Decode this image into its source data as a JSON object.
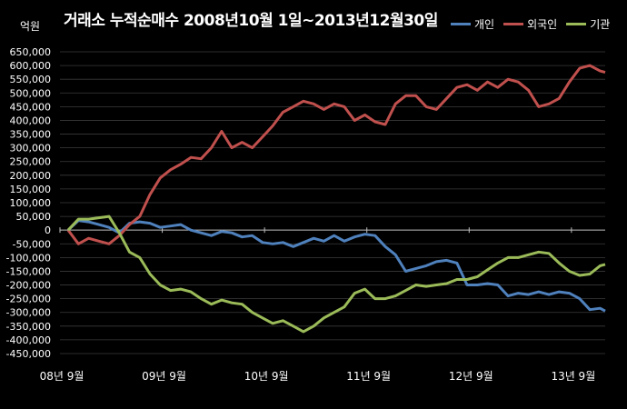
{
  "chart_data": {
    "type": "line",
    "title": "거래소 누적순매수 2008년10월 1일~2013년12월30일",
    "unit_label": "억원",
    "ylim": [
      -450000,
      650000
    ],
    "yticks": [
      650000,
      600000,
      550000,
      500000,
      450000,
      400000,
      350000,
      300000,
      250000,
      200000,
      150000,
      100000,
      50000,
      0,
      -50000,
      -100000,
      -150000,
      -200000,
      -250000,
      -300000,
      -350000,
      -400000,
      -450000
    ],
    "ytick_labels": [
      "650,000",
      "600,000",
      "550,000",
      "500,000",
      "450,000",
      "400,000",
      "350,000",
      "300,000",
      "250,000",
      "200,000",
      "150,000",
      "100,000",
      "50,000",
      "0",
      "-50,000",
      "-100,000",
      "-150,000",
      "-200,000",
      "-250,000",
      "-300,000",
      "-350,000",
      "-400,000",
      "-450,000"
    ],
    "xtick_labels": [
      "08년 9월",
      "09년 9월",
      "10년 9월",
      "11년 9월",
      "12년 9월",
      "13년 9월"
    ],
    "xlim": [
      2008.67,
      2014.0
    ],
    "xticks": [
      2008.67,
      2009.67,
      2010.67,
      2011.67,
      2012.67,
      2013.67
    ],
    "grid": true,
    "legend_position": "top-right",
    "series": [
      {
        "name": "개인",
        "color": "#4f81bd",
        "x": [
          2008.75,
          2008.85,
          2008.95,
          2009.05,
          2009.15,
          2009.25,
          2009.35,
          2009.45,
          2009.55,
          2009.65,
          2009.75,
          2009.85,
          2009.95,
          2010.05,
          2010.15,
          2010.25,
          2010.35,
          2010.45,
          2010.55,
          2010.65,
          2010.75,
          2010.85,
          2010.95,
          2011.05,
          2011.15,
          2011.25,
          2011.35,
          2011.45,
          2011.55,
          2011.65,
          2011.75,
          2011.85,
          2011.95,
          2012.05,
          2012.15,
          2012.25,
          2012.35,
          2012.45,
          2012.55,
          2012.65,
          2012.75,
          2012.85,
          2012.95,
          2013.05,
          2013.15,
          2013.25,
          2013.35,
          2013.45,
          2013.55,
          2013.65,
          2013.75,
          2013.85,
          2013.95,
          2014.0
        ],
        "values": [
          0,
          35000,
          30000,
          20000,
          10000,
          -10000,
          25000,
          30000,
          25000,
          10000,
          15000,
          20000,
          0,
          -10000,
          -20000,
          -5000,
          -10000,
          -25000,
          -20000,
          -45000,
          -50000,
          -45000,
          -60000,
          -45000,
          -30000,
          -40000,
          -20000,
          -40000,
          -25000,
          -15000,
          -20000,
          -60000,
          -90000,
          -150000,
          -140000,
          -130000,
          -115000,
          -110000,
          -120000,
          -200000,
          -200000,
          -195000,
          -200000,
          -240000,
          -230000,
          -235000,
          -225000,
          -235000,
          -225000,
          -230000,
          -250000,
          -290000,
          -285000,
          -295000
        ]
      },
      {
        "name": "외국인",
        "color": "#c0504d",
        "x": [
          2008.75,
          2008.85,
          2008.95,
          2009.05,
          2009.15,
          2009.25,
          2009.35,
          2009.45,
          2009.55,
          2009.65,
          2009.75,
          2009.85,
          2009.95,
          2010.05,
          2010.15,
          2010.25,
          2010.35,
          2010.45,
          2010.55,
          2010.65,
          2010.75,
          2010.85,
          2010.95,
          2011.05,
          2011.15,
          2011.25,
          2011.35,
          2011.45,
          2011.55,
          2011.65,
          2011.75,
          2011.85,
          2011.95,
          2012.05,
          2012.15,
          2012.25,
          2012.35,
          2012.45,
          2012.55,
          2012.65,
          2012.75,
          2012.85,
          2012.95,
          2013.05,
          2013.15,
          2013.25,
          2013.35,
          2013.45,
          2013.55,
          2013.65,
          2013.75,
          2013.85,
          2013.95,
          2014.0
        ],
        "values": [
          0,
          -50000,
          -30000,
          -40000,
          -50000,
          -20000,
          20000,
          50000,
          130000,
          190000,
          220000,
          240000,
          265000,
          260000,
          300000,
          360000,
          300000,
          320000,
          300000,
          340000,
          380000,
          430000,
          450000,
          470000,
          460000,
          440000,
          460000,
          450000,
          400000,
          420000,
          395000,
          385000,
          460000,
          490000,
          490000,
          450000,
          440000,
          480000,
          520000,
          530000,
          510000,
          540000,
          520000,
          550000,
          540000,
          510000,
          450000,
          460000,
          480000,
          540000,
          590000,
          600000,
          580000,
          575000
        ]
      },
      {
        "name": "기관",
        "color": "#9bbb59",
        "x": [
          2008.75,
          2008.85,
          2008.95,
          2009.05,
          2009.15,
          2009.25,
          2009.35,
          2009.45,
          2009.55,
          2009.65,
          2009.75,
          2009.85,
          2009.95,
          2010.05,
          2010.15,
          2010.25,
          2010.35,
          2010.45,
          2010.55,
          2010.65,
          2010.75,
          2010.85,
          2010.95,
          2011.05,
          2011.15,
          2011.25,
          2011.35,
          2011.45,
          2011.55,
          2011.65,
          2011.75,
          2011.85,
          2011.95,
          2012.05,
          2012.15,
          2012.25,
          2012.35,
          2012.45,
          2012.55,
          2012.65,
          2012.75,
          2012.85,
          2012.95,
          2013.05,
          2013.15,
          2013.25,
          2013.35,
          2013.45,
          2013.55,
          2013.65,
          2013.75,
          2013.85,
          2013.95,
          2014.0
        ],
        "values": [
          0,
          40000,
          40000,
          45000,
          50000,
          -10000,
          -80000,
          -100000,
          -160000,
          -200000,
          -220000,
          -215000,
          -225000,
          -250000,
          -270000,
          -255000,
          -265000,
          -270000,
          -300000,
          -320000,
          -340000,
          -330000,
          -350000,
          -370000,
          -350000,
          -320000,
          -300000,
          -280000,
          -230000,
          -215000,
          -250000,
          -250000,
          -240000,
          -220000,
          -200000,
          -205000,
          -200000,
          -195000,
          -180000,
          -180000,
          -170000,
          -145000,
          -120000,
          -100000,
          -100000,
          -90000,
          -80000,
          -85000,
          -120000,
          -150000,
          -165000,
          -160000,
          -130000,
          -125000
        ]
      }
    ]
  }
}
